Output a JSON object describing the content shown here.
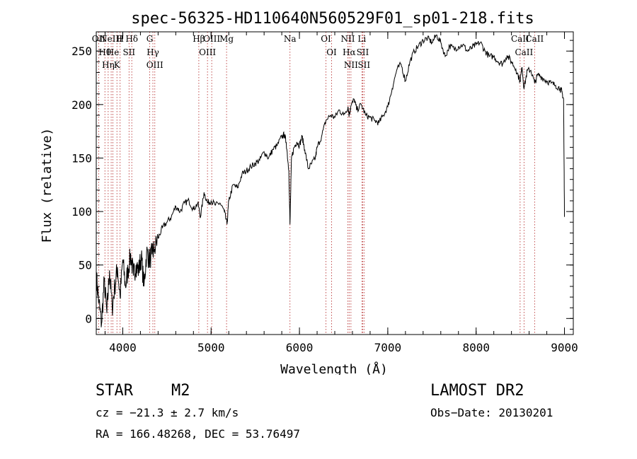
{
  "chart_data": {
    "type": "line",
    "title": "spec-56325-HD110640N560529F01_sp01-218.fits",
    "xlabel": "Wavelength (Å)",
    "ylabel": "Flux (relative)",
    "xlim": [
      3700,
      9100
    ],
    "ylim": [
      -15,
      268
    ],
    "x_ticks": [
      4000,
      5000,
      6000,
      7000,
      8000,
      9000
    ],
    "y_ticks": [
      0,
      50,
      100,
      150,
      200,
      250
    ],
    "x_tick_labels": [
      "4000",
      "5000",
      "6000",
      "7000",
      "8000",
      "9000"
    ],
    "y_tick_labels": [
      "0",
      "50",
      "100",
      "150",
      "200",
      "250"
    ],
    "grid": false,
    "series": [
      {
        "x": [
          3700,
          3730,
          3760,
          3790,
          3820,
          3850,
          3880,
          3910,
          3940,
          3970,
          4000,
          4030,
          4060,
          4090,
          4120,
          4150,
          4180,
          4210,
          4240,
          4270,
          4300,
          4330,
          4360,
          4400,
          4450,
          4500,
          4550,
          4600,
          4650,
          4700,
          4750,
          4800,
          4850,
          4880,
          4920,
          4960,
          5000,
          5050,
          5100,
          5150,
          5180,
          5200,
          5250,
          5300,
          5350,
          5400,
          5450,
          5500,
          5550,
          5600,
          5650,
          5700,
          5750,
          5800,
          5830,
          5850,
          5880,
          5893,
          5910,
          5940,
          5970,
          6000,
          6030,
          6060,
          6100,
          6140,
          6180,
          6200,
          6250,
          6300,
          6350,
          6400,
          6450,
          6500,
          6550,
          6563,
          6580,
          6620,
          6650,
          6700,
          6750,
          6800,
          6850,
          6900,
          6950,
          7000,
          7050,
          7100,
          7150,
          7200,
          7250,
          7300,
          7350,
          7400,
          7450,
          7500,
          7550,
          7600,
          7650,
          7700,
          7750,
          7800,
          7850,
          7900,
          7950,
          8000,
          8050,
          8100,
          8150,
          8200,
          8250,
          8300,
          8350,
          8400,
          8450,
          8498,
          8520,
          8542,
          8580,
          8620,
          8662,
          8700,
          8750,
          8800,
          8850,
          8900,
          8950,
          8970,
          8990,
          9000
        ],
        "y": [
          40,
          15,
          -5,
          35,
          5,
          45,
          10,
          30,
          48,
          20,
          55,
          30,
          45,
          60,
          40,
          50,
          45,
          58,
          30,
          62,
          55,
          60,
          65,
          75,
          85,
          90,
          95,
          105,
          100,
          108,
          110,
          102,
          108,
          95,
          118,
          108,
          110,
          106,
          108,
          100,
          88,
          110,
          125,
          122,
          135,
          138,
          142,
          145,
          148,
          156,
          150,
          158,
          162,
          170,
          172,
          165,
          138,
          88,
          150,
          160,
          165,
          162,
          170,
          158,
          140,
          145,
          150,
          160,
          170,
          185,
          190,
          188,
          195,
          190,
          198,
          190,
          198,
          205,
          195,
          200,
          190,
          188,
          185,
          183,
          190,
          198,
          215,
          232,
          238,
          222,
          240,
          250,
          255,
          260,
          262,
          258,
          265,
          258,
          245,
          255,
          252,
          254,
          256,
          250,
          253,
          256,
          258,
          250,
          245,
          245,
          240,
          238,
          246,
          240,
          233,
          222,
          235,
          215,
          232,
          232,
          220,
          228,
          225,
          222,
          220,
          218,
          215,
          212,
          205,
          95
        ]
      }
    ],
    "line_markers": [
      {
        "x": 3727,
        "label": "OII"
      },
      {
        "x": 3798,
        "label": "Hθ"
      },
      {
        "x": 3835,
        "label": "Hη"
      },
      {
        "x": 3869,
        "label": "NeIII"
      },
      {
        "x": 3889,
        "label": "He"
      },
      {
        "x": 3934,
        "label": "K"
      },
      {
        "x": 3970,
        "label": "H"
      },
      {
        "x": 4071,
        "label": "SII"
      },
      {
        "x": 4102,
        "label": "Hδ"
      },
      {
        "x": 4305,
        "label": "G"
      },
      {
        "x": 4341,
        "label": "Hγ"
      },
      {
        "x": 4363,
        "label": "OIII"
      },
      {
        "x": 4861,
        "label": "Hβ"
      },
      {
        "x": 4959,
        "label": "OIII"
      },
      {
        "x": 5007,
        "label": "OIII"
      },
      {
        "x": 5175,
        "label": "Mg"
      },
      {
        "x": 5893,
        "label": "Na"
      },
      {
        "x": 6300,
        "label": "OI"
      },
      {
        "x": 6364,
        "label": "OI"
      },
      {
        "x": 6548,
        "label": "NII"
      },
      {
        "x": 6563,
        "label": "Hα"
      },
      {
        "x": 6583,
        "label": "NII"
      },
      {
        "x": 6707,
        "label": "Li"
      },
      {
        "x": 6716,
        "label": "SII"
      },
      {
        "x": 6731,
        "label": "SII"
      },
      {
        "x": 8498,
        "label": "CaII"
      },
      {
        "x": 8542,
        "label": "CaII"
      },
      {
        "x": 8662,
        "label": "CaII"
      }
    ]
  },
  "info": {
    "object_class": "STAR",
    "subclass": "M2",
    "survey": "LAMOST DR2",
    "redshift_text": "cz = −21.3 ± 2.7 km/s",
    "obs_date_text": "Obs−Date: 20130201",
    "coords_text": "RA = 166.48268, DEC =  53.76497"
  },
  "colors": {
    "spectrum": "#000000",
    "marker_line": "#b22222",
    "axes": "#000000"
  }
}
